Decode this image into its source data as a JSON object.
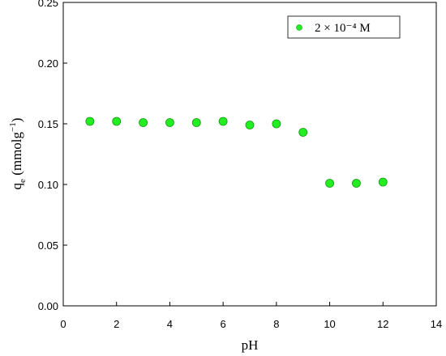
{
  "chart_data": {
    "type": "scatter",
    "x_label": "pH",
    "y_label": {
      "main": "q",
      "sub": "e",
      "rest": " (mmolg",
      "sup": "−1",
      "end": ")"
    },
    "series": [
      {
        "name": "2 × 10⁻⁴ M",
        "color": "#22ee22",
        "x": [
          1,
          2,
          3,
          4,
          5,
          6,
          7,
          8,
          9,
          10,
          11,
          12
        ],
        "values": [
          0.152,
          0.152,
          0.151,
          0.151,
          0.151,
          0.152,
          0.149,
          0.15,
          0.143,
          0.101,
          0.101,
          0.102
        ]
      }
    ],
    "xlim": [
      0,
      14
    ],
    "xticks": [
      0,
      2,
      4,
      6,
      8,
      10,
      12,
      14
    ],
    "ylim": [
      0,
      0.25
    ],
    "yticks": [
      {
        "value": 0,
        "label": "0.00"
      },
      0.05,
      {
        "value": 0.1,
        "label": "0.10"
      },
      0.15,
      {
        "value": 0.2,
        "label": "0.20"
      },
      0.25
    ],
    "grid": false,
    "legend": "upper-right"
  }
}
